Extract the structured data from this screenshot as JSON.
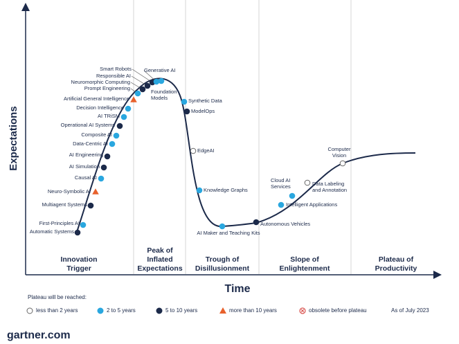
{
  "axes": {
    "y_label": "Expectations",
    "x_label": "Time"
  },
  "phases": [
    {
      "lines": [
        "Innovation",
        "Trigger"
      ]
    },
    {
      "lines": [
        "Peak of",
        "Inflated",
        "Expectations"
      ]
    },
    {
      "lines": [
        "Trough of",
        "Disillusionment"
      ]
    },
    {
      "lines": [
        "Slope of",
        "Enlightenment"
      ]
    },
    {
      "lines": [
        "Plateau of",
        "Productivity"
      ]
    }
  ],
  "legend": {
    "title": "Plateau will be reached:",
    "items": [
      {
        "label": "less than 2 years",
        "marker": "circle",
        "color": "#ffffff"
      },
      {
        "label": "2 to 5 years",
        "marker": "circle",
        "color": "#2aa7df"
      },
      {
        "label": "5 to 10 years",
        "marker": "circle",
        "color": "#1c2a4a"
      },
      {
        "label": "more than 10 years",
        "marker": "triangle",
        "color": "#e8612c"
      },
      {
        "label": "obsolete before plateau",
        "marker": "cross",
        "color": "#d9534f"
      }
    ]
  },
  "as_of": "As of July 2023",
  "footer": "gartner.com",
  "nodes": [
    {
      "label": [
        "Automatic Systems"
      ],
      "plateau": 2
    },
    {
      "label": [
        "First-Principles AI"
      ],
      "plateau": 1
    },
    {
      "label": [
        "Multiagent Systems"
      ],
      "plateau": 2
    },
    {
      "label": [
        "Neuro-Symbolic AI"
      ],
      "plateau": 3
    },
    {
      "label": [
        "Causal AI"
      ],
      "plateau": 1
    },
    {
      "label": [
        "AI Simulation"
      ],
      "plateau": 2
    },
    {
      "label": [
        "AI Engineering"
      ],
      "plateau": 2
    },
    {
      "label": [
        "Data-Centric AI"
      ],
      "plateau": 1
    },
    {
      "label": [
        "Composite AI"
      ],
      "plateau": 1
    },
    {
      "label": [
        "Operational AI Systems"
      ],
      "plateau": 2
    },
    {
      "label": [
        "AI TRiSM"
      ],
      "plateau": 1
    },
    {
      "label": [
        "Decision Intelligence"
      ],
      "plateau": 1
    },
    {
      "label": [
        "Artificial General Intelligence"
      ],
      "plateau": 3
    },
    {
      "label": [
        "Prompt Engineering"
      ],
      "plateau": 1
    },
    {
      "label": [
        "Neuromorphic Computing"
      ],
      "plateau": 2
    },
    {
      "label": [
        "Responsible AI"
      ],
      "plateau": 2
    },
    {
      "label": [
        "Smart Robots"
      ],
      "plateau": 2
    },
    {
      "label": [
        "Generative AI"
      ],
      "plateau": 1
    },
    {
      "label": [
        "Foundation",
        "Models"
      ],
      "plateau": 1
    },
    {
      "label": [
        "Synthetic Data"
      ],
      "plateau": 1
    },
    {
      "label": [
        "ModelOps"
      ],
      "plateau": 2
    },
    {
      "label": [
        "EdgeAI"
      ],
      "plateau": 0
    },
    {
      "label": [
        "Knowledge Graphs"
      ],
      "plateau": 1
    },
    {
      "label": [
        "AI Maker and Teaching Kits"
      ],
      "plateau": 1
    },
    {
      "label": [
        "Autonomous Vehicles"
      ],
      "plateau": 2
    },
    {
      "label": [
        "Intelligent Applications"
      ],
      "plateau": 1
    },
    {
      "label": [
        "Cloud AI",
        "Services"
      ],
      "plateau": 1
    },
    {
      "label": [
        "Data Labeling",
        "and Annotation"
      ],
      "plateau": 0
    },
    {
      "label": [
        "Computer",
        "Vision"
      ],
      "plateau": 0
    }
  ]
}
